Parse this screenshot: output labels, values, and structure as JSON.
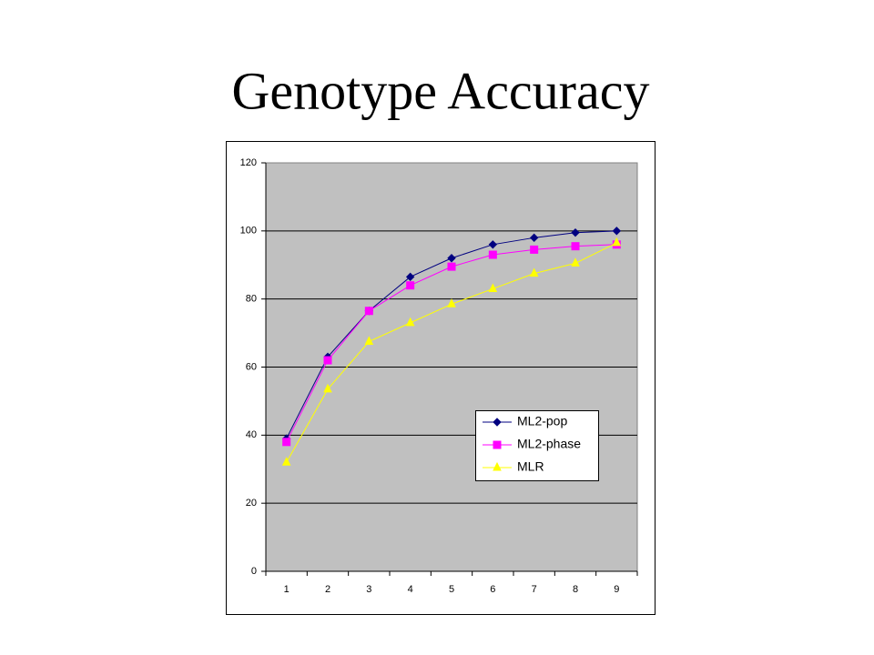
{
  "chart_data": {
    "type": "line",
    "title": "Genotype Accuracy",
    "categories": [
      "1",
      "2",
      "3",
      "4",
      "5",
      "6",
      "7",
      "8",
      "9"
    ],
    "series": [
      {
        "name": "ML2-pop",
        "color": "#000080",
        "marker": "diamond",
        "values": [
          39,
          63,
          76.5,
          86.5,
          92,
          96,
          98,
          99.5,
          100
        ]
      },
      {
        "name": "ML2-phase",
        "color": "#ff00ff",
        "marker": "square",
        "values": [
          38,
          62,
          76.5,
          84,
          89.5,
          93,
          94.5,
          95.5,
          96
        ]
      },
      {
        "name": "MLR",
        "color": "#ffff00",
        "marker": "triangle",
        "values": [
          32,
          53.5,
          67.5,
          73,
          78.5,
          83,
          87.5,
          90.5,
          96.5
        ]
      }
    ],
    "ylim": [
      0,
      120
    ],
    "yticks": [
      0,
      20,
      40,
      60,
      80,
      100,
      120
    ],
    "grid": true
  }
}
